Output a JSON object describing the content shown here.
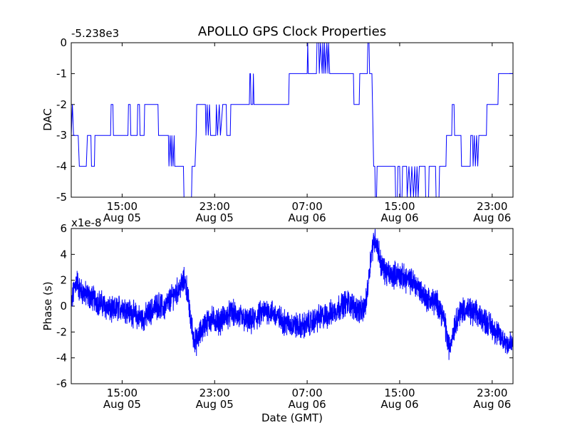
{
  "chart_data": [
    {
      "type": "line",
      "title": "APOLLO GPS Clock Properties",
      "ylabel": "DAC",
      "xlabel": "",
      "offset_label": "-5.238e3",
      "ylim": [
        -5,
        0
      ],
      "yticks": [
        0,
        -1,
        -2,
        -3,
        -4,
        -5
      ],
      "xlim_hours": [
        10.6,
        48.8
      ],
      "xticks": [
        {
          "hour": 15,
          "time": "15:00",
          "date": "Aug 05"
        },
        {
          "hour": 23,
          "time": "23:00",
          "date": "Aug 05"
        },
        {
          "hour": 31,
          "time": "07:00",
          "date": "Aug 06"
        },
        {
          "hour": 39,
          "time": "15:00",
          "date": "Aug 06"
        },
        {
          "hour": 47,
          "time": "23:00",
          "date": "Aug 06"
        }
      ],
      "color": "#0000ff",
      "series": [
        {
          "name": "DAC",
          "points": [
            [
              10.6,
              -3
            ],
            [
              10.7,
              -2
            ],
            [
              10.8,
              -3
            ],
            [
              11.2,
              -3
            ],
            [
              11.3,
              -4
            ],
            [
              11.9,
              -4
            ],
            [
              12.0,
              -3
            ],
            [
              12.3,
              -3
            ],
            [
              12.35,
              -4
            ],
            [
              12.6,
              -4
            ],
            [
              12.65,
              -3
            ],
            [
              14.0,
              -3
            ],
            [
              14.05,
              -2
            ],
            [
              14.2,
              -2
            ],
            [
              14.25,
              -3
            ],
            [
              15.5,
              -3
            ],
            [
              15.55,
              -2
            ],
            [
              15.7,
              -2
            ],
            [
              15.75,
              -3
            ],
            [
              16.3,
              -3
            ],
            [
              16.35,
              -2
            ],
            [
              16.5,
              -2
            ],
            [
              16.55,
              -3
            ],
            [
              16.9,
              -3
            ],
            [
              16.95,
              -2
            ],
            [
              18.1,
              -2
            ],
            [
              18.15,
              -3
            ],
            [
              19.0,
              -3
            ],
            [
              19.05,
              -4
            ],
            [
              19.15,
              -3
            ],
            [
              19.25,
              -4
            ],
            [
              19.3,
              -3
            ],
            [
              19.4,
              -4
            ],
            [
              19.5,
              -3
            ],
            [
              19.55,
              -4
            ],
            [
              20.3,
              -4
            ],
            [
              20.35,
              -5
            ],
            [
              21.0,
              -5
            ],
            [
              21.05,
              -4
            ],
            [
              21.3,
              -4
            ],
            [
              21.4,
              -3
            ],
            [
              21.45,
              -2
            ],
            [
              22.2,
              -2
            ],
            [
              22.25,
              -3
            ],
            [
              22.35,
              -2
            ],
            [
              22.45,
              -3
            ],
            [
              22.55,
              -2
            ],
            [
              22.65,
              -3
            ],
            [
              23.1,
              -3
            ],
            [
              23.15,
              -2
            ],
            [
              23.25,
              -3
            ],
            [
              23.4,
              -2
            ],
            [
              23.5,
              -3
            ],
            [
              23.7,
              -2
            ],
            [
              24.0,
              -2
            ],
            [
              24.05,
              -3
            ],
            [
              24.35,
              -3
            ],
            [
              24.4,
              -2
            ],
            [
              26.0,
              -2
            ],
            [
              26.05,
              -1
            ],
            [
              26.1,
              -1
            ],
            [
              26.15,
              -2
            ],
            [
              26.3,
              -2
            ],
            [
              26.35,
              -1
            ],
            [
              26.4,
              -2
            ],
            [
              29.4,
              -2
            ],
            [
              29.45,
              -1
            ],
            [
              31.0,
              -1
            ],
            [
              31.05,
              0
            ],
            [
              31.1,
              -1
            ],
            [
              31.8,
              -1
            ],
            [
              31.85,
              0
            ],
            [
              32.0,
              0
            ],
            [
              32.05,
              -1
            ],
            [
              32.15,
              0
            ],
            [
              32.3,
              -1
            ],
            [
              32.35,
              0
            ],
            [
              32.45,
              -1
            ],
            [
              32.5,
              0
            ],
            [
              32.6,
              -1
            ],
            [
              32.7,
              0
            ],
            [
              32.8,
              -1
            ],
            [
              32.85,
              0
            ],
            [
              32.95,
              -1
            ],
            [
              35.0,
              -1
            ],
            [
              35.05,
              -2
            ],
            [
              35.5,
              -2
            ],
            [
              35.55,
              -1
            ],
            [
              36.2,
              -1
            ],
            [
              36.25,
              0
            ],
            [
              36.35,
              0
            ],
            [
              36.4,
              -1
            ],
            [
              36.6,
              -1
            ],
            [
              36.65,
              -2
            ],
            [
              36.7,
              -3
            ],
            [
              36.75,
              -4
            ],
            [
              36.85,
              -4
            ],
            [
              36.9,
              -5
            ],
            [
              37.0,
              -5
            ],
            [
              37.05,
              -4
            ],
            [
              38.6,
              -4
            ],
            [
              38.65,
              -5
            ],
            [
              38.8,
              -5
            ],
            [
              38.85,
              -4
            ],
            [
              39.0,
              -4
            ],
            [
              39.05,
              -5
            ],
            [
              39.2,
              -5
            ],
            [
              39.25,
              -4
            ],
            [
              39.6,
              -4
            ],
            [
              39.65,
              -5
            ],
            [
              39.8,
              -4
            ],
            [
              39.95,
              -5
            ],
            [
              40.05,
              -4
            ],
            [
              40.2,
              -5
            ],
            [
              40.3,
              -4
            ],
            [
              40.4,
              -5
            ],
            [
              40.5,
              -4
            ],
            [
              40.6,
              -5
            ],
            [
              40.7,
              -4
            ],
            [
              41.2,
              -4
            ],
            [
              41.25,
              -5
            ],
            [
              41.5,
              -5
            ],
            [
              41.55,
              -4
            ],
            [
              42.1,
              -4
            ],
            [
              42.15,
              -5
            ],
            [
              42.4,
              -5
            ],
            [
              42.45,
              -4
            ],
            [
              43.0,
              -4
            ],
            [
              43.05,
              -3
            ],
            [
              43.5,
              -3
            ],
            [
              43.55,
              -2
            ],
            [
              43.7,
              -2
            ],
            [
              43.75,
              -3
            ],
            [
              44.3,
              -3
            ],
            [
              44.35,
              -4
            ],
            [
              45.1,
              -4
            ],
            [
              45.15,
              -3
            ],
            [
              45.3,
              -3
            ],
            [
              45.35,
              -4
            ],
            [
              45.45,
              -3
            ],
            [
              45.55,
              -4
            ],
            [
              45.65,
              -3
            ],
            [
              45.75,
              -4
            ],
            [
              45.85,
              -3
            ],
            [
              46.5,
              -3
            ],
            [
              46.55,
              -2
            ],
            [
              47.5,
              -2
            ],
            [
              47.55,
              -1
            ],
            [
              48.8,
              -1
            ]
          ]
        }
      ]
    },
    {
      "type": "line",
      "title": "",
      "ylabel": "Phase (s)",
      "xlabel": "Date (GMT)",
      "offset_label": "x1e-8",
      "ylim": [
        -6,
        6
      ],
      "yticks": [
        6,
        4,
        2,
        0,
        -2,
        -4,
        -6
      ],
      "xlim_hours": [
        10.6,
        48.8
      ],
      "xticks": [
        {
          "hour": 15,
          "time": "15:00",
          "date": "Aug 05"
        },
        {
          "hour": 23,
          "time": "23:00",
          "date": "Aug 05"
        },
        {
          "hour": 31,
          "time": "07:00",
          "date": "Aug 06"
        },
        {
          "hour": 39,
          "time": "15:00",
          "date": "Aug 06"
        },
        {
          "hour": 47,
          "time": "23:00",
          "date": "Aug 06"
        }
      ],
      "color": "#0000ff",
      "series": [
        {
          "name": "Phase",
          "points": [
            [
              10.6,
              0.0
            ],
            [
              10.9,
              1.6
            ],
            [
              11.1,
              2.0
            ],
            [
              11.3,
              1.3
            ],
            [
              11.7,
              1.0
            ],
            [
              12.0,
              0.8
            ],
            [
              12.5,
              0.6
            ],
            [
              13.0,
              0.3
            ],
            [
              13.4,
              0.1
            ],
            [
              13.8,
              -0.2
            ],
            [
              14.2,
              -0.4
            ],
            [
              14.6,
              -0.2
            ],
            [
              15.0,
              0.0
            ],
            [
              15.4,
              -0.3
            ],
            [
              15.8,
              -0.5
            ],
            [
              16.3,
              -0.8
            ],
            [
              16.8,
              -1.0
            ],
            [
              17.3,
              -0.6
            ],
            [
              17.8,
              -0.1
            ],
            [
              18.2,
              0.1
            ],
            [
              18.6,
              -0.2
            ],
            [
              19.0,
              0.3
            ],
            [
              19.4,
              0.8
            ],
            [
              19.8,
              1.2
            ],
            [
              20.1,
              1.6
            ],
            [
              20.4,
              2.0
            ],
            [
              20.6,
              1.4
            ],
            [
              20.8,
              -0.2
            ],
            [
              21.0,
              -1.5
            ],
            [
              21.2,
              -2.5
            ],
            [
              21.4,
              -2.8
            ],
            [
              21.7,
              -2.2
            ],
            [
              22.2,
              -1.3
            ],
            [
              22.8,
              -1.0
            ],
            [
              23.4,
              -1.2
            ],
            [
              24.0,
              -0.8
            ],
            [
              24.5,
              -0.5
            ],
            [
              25.0,
              -0.8
            ],
            [
              25.5,
              -1.0
            ],
            [
              26.0,
              -1.3
            ],
            [
              26.5,
              -1.0
            ],
            [
              27.0,
              -0.6
            ],
            [
              27.5,
              -0.3
            ],
            [
              28.0,
              -0.5
            ],
            [
              28.5,
              -0.9
            ],
            [
              29.0,
              -1.2
            ],
            [
              29.5,
              -1.4
            ],
            [
              30.0,
              -1.5
            ],
            [
              30.5,
              -1.6
            ],
            [
              31.0,
              -1.4
            ],
            [
              31.5,
              -1.2
            ],
            [
              32.0,
              -0.9
            ],
            [
              32.5,
              -0.8
            ],
            [
              33.0,
              -0.6
            ],
            [
              33.5,
              -0.3
            ],
            [
              34.0,
              0.1
            ],
            [
              34.5,
              0.3
            ],
            [
              35.0,
              0.0
            ],
            [
              35.5,
              -0.3
            ],
            [
              35.8,
              -0.4
            ],
            [
              36.1,
              0.3
            ],
            [
              36.3,
              2.0
            ],
            [
              36.5,
              3.8
            ],
            [
              36.7,
              4.8
            ],
            [
              36.9,
              5.2
            ],
            [
              37.1,
              4.6
            ],
            [
              37.4,
              3.2
            ],
            [
              37.8,
              2.6
            ],
            [
              38.3,
              2.4
            ],
            [
              38.8,
              2.5
            ],
            [
              39.3,
              2.2
            ],
            [
              39.8,
              2.0
            ],
            [
              40.3,
              1.8
            ],
            [
              40.8,
              1.2
            ],
            [
              41.3,
              0.6
            ],
            [
              41.8,
              0.4
            ],
            [
              42.3,
              0.2
            ],
            [
              42.6,
              -0.4
            ],
            [
              42.9,
              -1.2
            ],
            [
              43.1,
              -2.5
            ],
            [
              43.3,
              -3.3
            ],
            [
              43.6,
              -2.0
            ],
            [
              44.0,
              -0.8
            ],
            [
              44.5,
              -0.2
            ],
            [
              45.0,
              -0.4
            ],
            [
              45.5,
              -0.6
            ],
            [
              46.0,
              -0.8
            ],
            [
              46.5,
              -1.2
            ],
            [
              47.0,
              -1.6
            ],
            [
              47.5,
              -2.2
            ],
            [
              48.0,
              -2.6
            ],
            [
              48.4,
              -2.9
            ],
            [
              48.8,
              -3.0
            ]
          ]
        }
      ]
    }
  ]
}
